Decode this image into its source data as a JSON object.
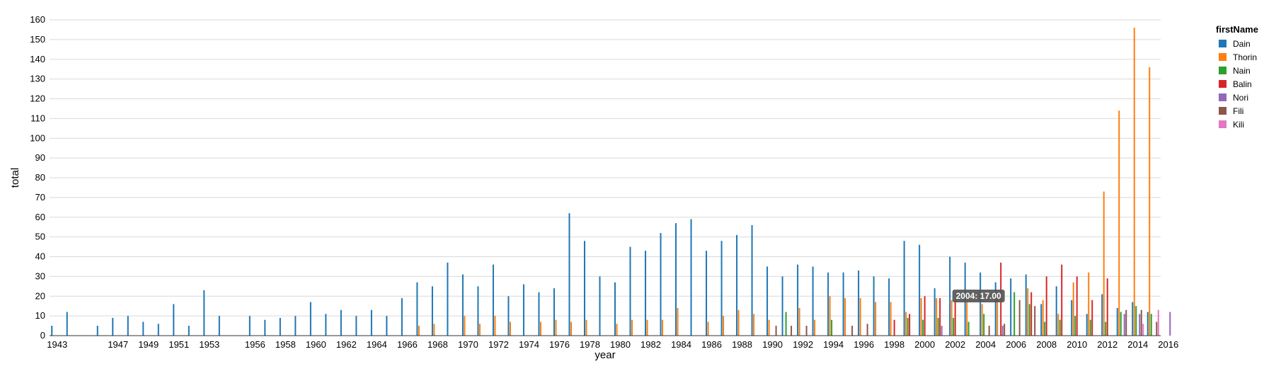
{
  "chart_data": {
    "type": "bar",
    "xlabel": "year",
    "ylabel": "total",
    "ylim": [
      0,
      160
    ],
    "ytick_step": 10,
    "grid": "horizontal",
    "legend_position": "right",
    "legend_title": "firstName",
    "categories": [
      1943,
      1944,
      1946,
      1947,
      1948,
      1949,
      1950,
      1951,
      1952,
      1953,
      1954,
      1956,
      1957,
      1958,
      1959,
      1960,
      1961,
      1962,
      1963,
      1964,
      1965,
      1966,
      1967,
      1968,
      1969,
      1970,
      1971,
      1972,
      1973,
      1974,
      1975,
      1976,
      1977,
      1978,
      1979,
      1980,
      1981,
      1982,
      1983,
      1984,
      1985,
      1986,
      1987,
      1988,
      1989,
      1990,
      1991,
      1992,
      1993,
      1994,
      1995,
      1996,
      1997,
      1998,
      1999,
      2000,
      2001,
      2002,
      2003,
      2004,
      2005,
      2006,
      2007,
      2008,
      2009,
      2010,
      2011,
      2012,
      2013,
      2014,
      2015,
      2016
    ],
    "tick_labels": [
      "1943",
      "1947",
      "1949",
      "1951",
      "1953",
      "1956",
      "1958",
      "1960",
      "1962",
      "1964",
      "1966",
      "1968",
      "1970",
      "1972",
      "1974",
      "1976",
      "1978",
      "1980",
      "1982",
      "1984",
      "1986",
      "1988",
      "1990",
      "1992",
      "1994",
      "1996",
      "1998",
      "2000",
      "2002",
      "2004",
      "2006",
      "2008",
      "2010",
      "2012",
      "2014",
      "2016"
    ],
    "series": [
      {
        "name": "Dain",
        "color": "#1f77b4",
        "values": [
          5,
          12,
          5,
          9,
          10,
          7,
          6,
          16,
          5,
          23,
          10,
          10,
          8,
          9,
          10,
          17,
          11,
          13,
          10,
          13,
          10,
          19,
          27,
          25,
          37,
          31,
          25,
          36,
          20,
          26,
          22,
          24,
          62,
          48,
          30,
          27,
          45,
          43,
          52,
          57,
          59,
          43,
          48,
          51,
          56,
          35,
          30,
          36,
          35,
          32,
          32,
          33,
          30,
          29,
          48,
          46,
          24,
          40,
          37,
          32,
          27,
          29,
          31,
          16,
          25,
          18,
          11,
          21,
          14,
          17,
          12,
          null
        ]
      },
      {
        "name": "Thorin",
        "color": "#ff7f0e",
        "values": [
          null,
          null,
          null,
          null,
          null,
          null,
          null,
          null,
          null,
          null,
          null,
          null,
          null,
          null,
          null,
          null,
          null,
          null,
          null,
          null,
          null,
          null,
          5,
          6,
          null,
          10,
          6,
          10,
          7,
          null,
          7,
          8,
          7,
          8,
          null,
          6,
          8,
          8,
          8,
          14,
          null,
          7,
          10,
          13,
          11,
          8,
          null,
          14,
          8,
          20,
          19,
          19,
          17,
          17,
          12,
          19,
          19,
          18,
          17,
          16,
          21,
          null,
          24,
          18,
          11,
          27,
          32,
          73,
          114,
          156,
          136,
          null
        ]
      },
      {
        "name": "Nain",
        "color": "#2ca02c",
        "values": [
          null,
          null,
          null,
          null,
          null,
          null,
          null,
          null,
          null,
          null,
          null,
          null,
          null,
          null,
          null,
          null,
          null,
          null,
          null,
          null,
          null,
          null,
          null,
          null,
          null,
          null,
          null,
          null,
          null,
          null,
          null,
          null,
          null,
          null,
          null,
          null,
          null,
          null,
          null,
          null,
          null,
          null,
          null,
          null,
          null,
          null,
          12,
          null,
          null,
          8,
          null,
          null,
          null,
          null,
          9,
          8,
          9,
          9,
          7,
          11,
          null,
          22,
          16,
          7,
          8,
          10,
          8,
          7,
          12,
          15,
          11,
          null
        ]
      },
      {
        "name": "Balin",
        "color": "#d62728",
        "values": [
          null,
          null,
          null,
          null,
          null,
          null,
          null,
          null,
          null,
          null,
          null,
          null,
          null,
          null,
          null,
          null,
          null,
          null,
          null,
          null,
          null,
          null,
          null,
          null,
          null,
          null,
          null,
          null,
          null,
          null,
          null,
          null,
          null,
          null,
          null,
          null,
          null,
          null,
          null,
          null,
          null,
          null,
          null,
          null,
          null,
          null,
          null,
          null,
          null,
          null,
          null,
          null,
          null,
          8,
          11,
          20,
          19,
          18,
          null,
          null,
          37,
          null,
          22,
          30,
          36,
          30,
          18,
          29,
          null,
          null,
          null,
          null
        ]
      },
      {
        "name": "Nori",
        "color": "#9467bd",
        "values": [
          null,
          null,
          null,
          null,
          null,
          null,
          null,
          null,
          null,
          null,
          null,
          null,
          null,
          null,
          null,
          null,
          null,
          null,
          null,
          null,
          null,
          null,
          null,
          null,
          null,
          null,
          null,
          null,
          null,
          null,
          null,
          null,
          null,
          null,
          null,
          null,
          null,
          null,
          null,
          null,
          null,
          null,
          null,
          null,
          null,
          null,
          null,
          null,
          null,
          null,
          null,
          null,
          null,
          null,
          null,
          null,
          5,
          null,
          null,
          null,
          5,
          null,
          null,
          null,
          null,
          null,
          null,
          null,
          11,
          11,
          null,
          12
        ]
      },
      {
        "name": "Fili",
        "color": "#8c564b",
        "values": [
          null,
          null,
          null,
          null,
          null,
          null,
          null,
          null,
          null,
          null,
          null,
          null,
          null,
          null,
          null,
          null,
          null,
          null,
          null,
          null,
          null,
          null,
          null,
          null,
          null,
          null,
          null,
          null,
          null,
          null,
          null,
          null,
          null,
          null,
          null,
          null,
          null,
          null,
          null,
          null,
          null,
          null,
          null,
          null,
          null,
          5,
          5,
          5,
          null,
          null,
          5,
          6,
          null,
          null,
          null,
          null,
          null,
          null,
          null,
          5,
          6,
          18,
          15,
          null,
          null,
          null,
          null,
          null,
          13,
          13,
          7,
          null
        ]
      },
      {
        "name": "Kili",
        "color": "#e377c2",
        "values": [
          null,
          null,
          null,
          null,
          null,
          null,
          null,
          null,
          null,
          null,
          null,
          null,
          null,
          null,
          null,
          null,
          null,
          null,
          null,
          null,
          null,
          null,
          null,
          null,
          null,
          null,
          null,
          null,
          null,
          null,
          null,
          null,
          null,
          null,
          null,
          null,
          null,
          null,
          null,
          null,
          null,
          null,
          null,
          null,
          null,
          null,
          null,
          null,
          null,
          null,
          null,
          null,
          null,
          null,
          null,
          null,
          null,
          null,
          null,
          null,
          null,
          null,
          null,
          null,
          null,
          null,
          null,
          null,
          null,
          6,
          13,
          null
        ]
      }
    ],
    "tooltip": {
      "text": "2004: 17.00"
    }
  }
}
